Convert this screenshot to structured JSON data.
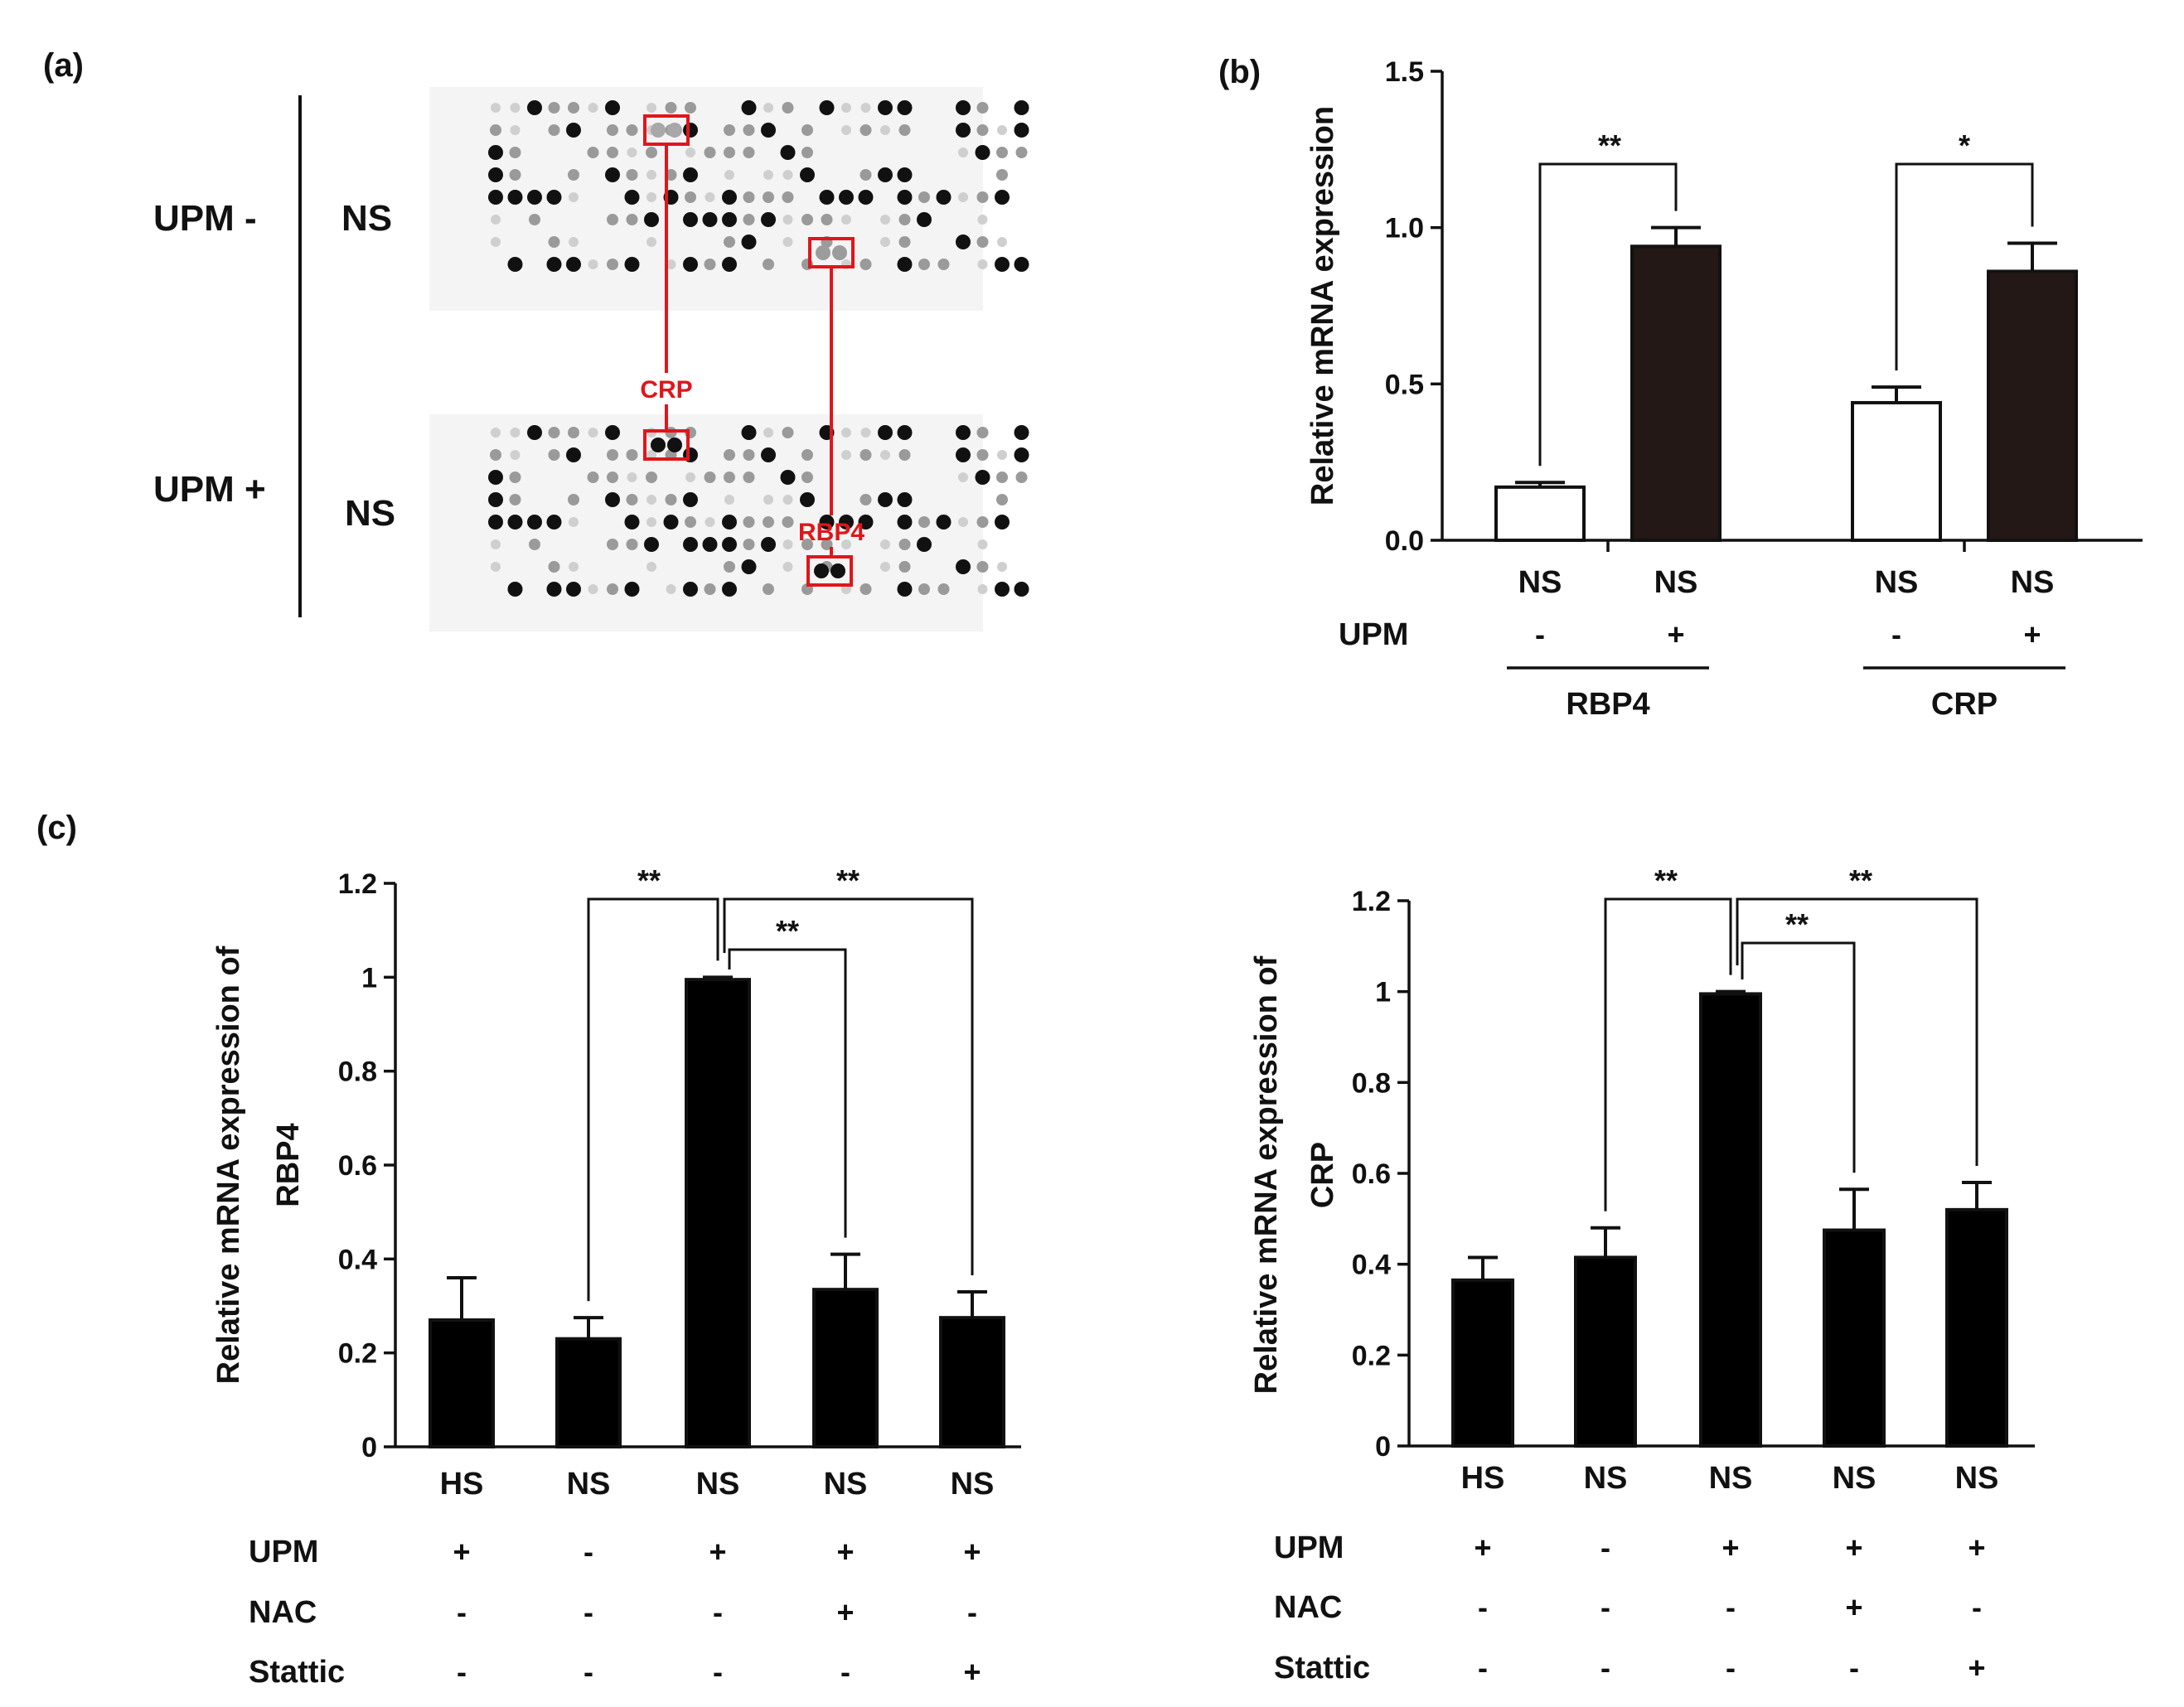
{
  "panel_a": {
    "label": "(a)",
    "row_top": {
      "condition": "UPM -",
      "sample": "NS"
    },
    "row_bottom": {
      "condition": "UPM +",
      "sample": "NS"
    },
    "markers": [
      {
        "name": "CRP"
      },
      {
        "name": "RBP4"
      }
    ],
    "highlight_color": "#e0161b",
    "array_dot_color": "#111111"
  },
  "chart_data": [
    {
      "id": "b",
      "panel_label": "(b)",
      "type": "bar",
      "ylabel": "Relative mRNA expression",
      "ylim": [
        0,
        1.5
      ],
      "yticks": [
        "0.0",
        "0.5",
        "1.0",
        "1.5"
      ],
      "ytick_values": [
        0,
        0.5,
        1.0,
        1.5
      ],
      "categories": [
        "NS",
        "NS",
        "NS",
        "NS"
      ],
      "values": [
        0.17,
        0.94,
        0.44,
        0.86
      ],
      "errors": [
        0.015,
        0.06,
        0.05,
        0.09
      ],
      "fills": [
        "#ffffff",
        "#231815",
        "#ffffff",
        "#231815"
      ],
      "row_labels": [
        {
          "name": "UPM",
          "marks": [
            "-",
            "+",
            "-",
            "+"
          ]
        }
      ],
      "groups": [
        {
          "name": "RBP4",
          "span": [
            0,
            1
          ]
        },
        {
          "name": "CRP",
          "span": [
            2,
            3
          ]
        }
      ],
      "significance": [
        {
          "from": 0,
          "to": 1,
          "label": "**"
        },
        {
          "from": 2,
          "to": 3,
          "label": "*"
        }
      ]
    },
    {
      "id": "c-rbp4",
      "panel_label": "(c)",
      "type": "bar",
      "ylabel": [
        "Relative mRNA expression of",
        "RBP4"
      ],
      "ylim": [
        0,
        1.2
      ],
      "yticks": [
        "0",
        "0.2",
        "0.4",
        "0.6",
        "0.8",
        "1",
        "1.2"
      ],
      "ytick_values": [
        0,
        0.2,
        0.4,
        0.6,
        0.8,
        1.0,
        1.2
      ],
      "categories": [
        "HS",
        "NS",
        "NS",
        "NS",
        "NS"
      ],
      "values": [
        0.27,
        0.23,
        0.995,
        0.335,
        0.275
      ],
      "errors": [
        0.09,
        0.045,
        0.005,
        0.075,
        0.055
      ],
      "fills": [
        "#000000",
        "#000000",
        "#000000",
        "#000000",
        "#000000"
      ],
      "row_labels": [
        {
          "name": "UPM",
          "marks": [
            "+",
            "-",
            "+",
            "+",
            "+"
          ]
        },
        {
          "name": "NAC",
          "marks": [
            "-",
            "-",
            "-",
            "+",
            "-"
          ]
        },
        {
          "name": "Stattic",
          "marks": [
            "-",
            "-",
            "-",
            "-",
            "+"
          ]
        }
      ],
      "significance": [
        {
          "from": 1,
          "to": 2,
          "label": "**"
        },
        {
          "from": 2,
          "to": 4,
          "label": "**"
        },
        {
          "from": 2,
          "to": 3,
          "label": "**"
        }
      ]
    },
    {
      "id": "c-crp",
      "panel_label": "",
      "type": "bar",
      "ylabel": [
        "Relative mRNA expression of",
        "CRP"
      ],
      "ylim": [
        0,
        1.2
      ],
      "yticks": [
        "0",
        "0.2",
        "0.4",
        "0.6",
        "0.8",
        "1",
        "1.2"
      ],
      "ytick_values": [
        0,
        0.2,
        0.4,
        0.6,
        0.8,
        1.0,
        1.2
      ],
      "categories": [
        "HS",
        "NS",
        "NS",
        "NS",
        "NS"
      ],
      "values": [
        0.365,
        0.415,
        0.995,
        0.475,
        0.52
      ],
      "errors": [
        0.05,
        0.065,
        0.005,
        0.09,
        0.06
      ],
      "fills": [
        "#000000",
        "#000000",
        "#000000",
        "#000000",
        "#000000"
      ],
      "row_labels": [
        {
          "name": "UPM",
          "marks": [
            "+",
            "-",
            "+",
            "+",
            "+"
          ]
        },
        {
          "name": "NAC",
          "marks": [
            "-",
            "-",
            "-",
            "+",
            "-"
          ]
        },
        {
          "name": "Stattic",
          "marks": [
            "-",
            "-",
            "-",
            "-",
            "+"
          ]
        }
      ],
      "significance": [
        {
          "from": 1,
          "to": 2,
          "label": "**"
        },
        {
          "from": 2,
          "to": 4,
          "label": "**"
        },
        {
          "from": 2,
          "to": 3,
          "label": "**"
        }
      ]
    }
  ]
}
